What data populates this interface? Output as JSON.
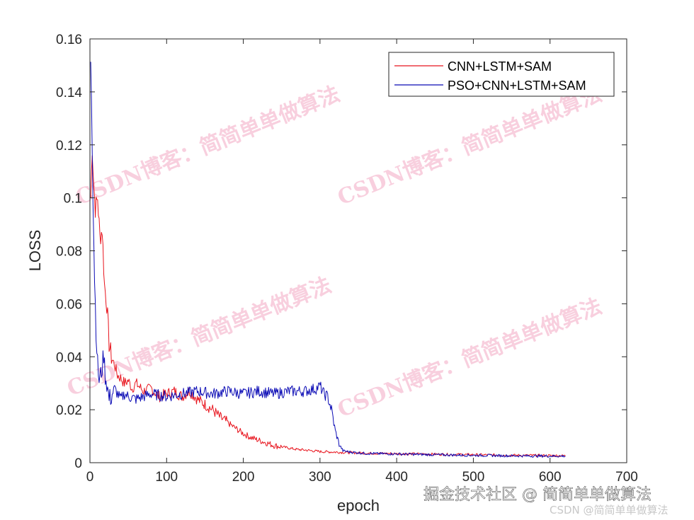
{
  "chart_data": {
    "type": "line",
    "title": "",
    "xlabel": "epoch",
    "ylabel": "LOSS",
    "xlim": [
      0,
      700
    ],
    "ylim": [
      0,
      0.16
    ],
    "xticks": [
      0,
      100,
      200,
      300,
      400,
      500,
      600,
      700
    ],
    "xtick_labels": [
      "0",
      "100",
      "200",
      "300",
      "400",
      "500",
      "600",
      "700"
    ],
    "yticks": [
      0,
      0.02,
      0.04,
      0.06,
      0.08,
      0.1,
      0.12,
      0.14,
      0.16
    ],
    "ytick_labels": [
      "0",
      "0.02",
      "0.04",
      "0.06",
      "0.08",
      "0.1",
      "0.12",
      "0.14",
      "0.16"
    ],
    "grid": false,
    "legend_position": "top-right",
    "series": [
      {
        "name": "CNN+LSTM+SAM",
        "color": "#e8141d",
        "x": [
          1,
          3,
          5,
          7,
          10,
          13,
          16,
          19,
          22,
          25,
          28,
          32,
          36,
          40,
          45,
          50,
          55,
          60,
          70,
          80,
          90,
          100,
          110,
          120,
          130,
          140,
          150,
          160,
          170,
          180,
          190,
          200,
          210,
          220,
          230,
          240,
          250,
          260,
          270,
          280,
          290,
          300,
          320,
          340,
          360,
          380,
          400,
          450,
          500,
          550,
          600,
          620
        ],
        "y": [
          0.1,
          0.119,
          0.105,
          0.096,
          0.1,
          0.085,
          0.088,
          0.067,
          0.06,
          0.045,
          0.04,
          0.037,
          0.033,
          0.032,
          0.03,
          0.031,
          0.028,
          0.03,
          0.027,
          0.028,
          0.025,
          0.026,
          0.027,
          0.025,
          0.027,
          0.024,
          0.022,
          0.02,
          0.017,
          0.015,
          0.013,
          0.011,
          0.0095,
          0.0085,
          0.0075,
          0.0065,
          0.006,
          0.0055,
          0.005,
          0.0048,
          0.0045,
          0.0042,
          0.004,
          0.0038,
          0.0036,
          0.0035,
          0.0034,
          0.0032,
          0.003,
          0.0028,
          0.0027,
          0.0026
        ]
      },
      {
        "name": "PSO+CNN+LSTM+SAM",
        "color": "#0b0bb5",
        "x": [
          1,
          2,
          3,
          4,
          5,
          6,
          7,
          8,
          10,
          12,
          14,
          16,
          18,
          20,
          22,
          25,
          28,
          32,
          36,
          40,
          45,
          50,
          60,
          80,
          100,
          120,
          140,
          160,
          180,
          200,
          220,
          240,
          260,
          280,
          295,
          300,
          305,
          310,
          315,
          320,
          325,
          330,
          340,
          360,
          400,
          450,
          500,
          550,
          600,
          620
        ],
        "y": [
          0.153,
          0.14,
          0.12,
          0.1,
          0.085,
          0.07,
          0.06,
          0.05,
          0.037,
          0.031,
          0.033,
          0.036,
          0.041,
          0.033,
          0.03,
          0.024,
          0.025,
          0.028,
          0.026,
          0.024,
          0.026,
          0.025,
          0.024,
          0.026,
          0.025,
          0.026,
          0.027,
          0.026,
          0.027,
          0.026,
          0.027,
          0.026,
          0.027,
          0.027,
          0.028,
          0.029,
          0.026,
          0.025,
          0.02,
          0.012,
          0.007,
          0.0045,
          0.004,
          0.0035,
          0.0033,
          0.003,
          0.0028,
          0.0026,
          0.0025,
          0.0025
        ]
      }
    ]
  },
  "watermarks": [
    "CSDN博客：简简单单做算法",
    "CSDN博客：简简单单做算法",
    "CSDN博客：简简单单做算法",
    "CSDN博客：简简单单做算法"
  ],
  "footer": {
    "main": "掘金技术社区 @ 简简单单做算法",
    "sub": "CSDN @简简单单做算法"
  }
}
